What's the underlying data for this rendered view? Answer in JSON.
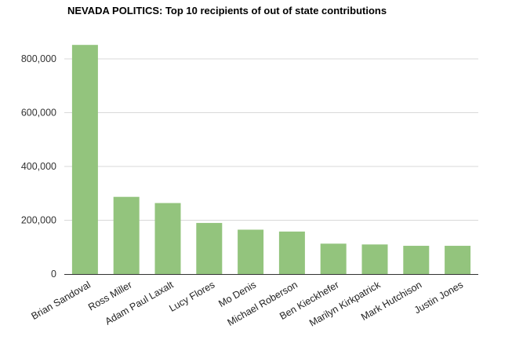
{
  "chart_data": {
    "type": "bar",
    "title": "NEVADA POLITICS: Top 10 recipients of out of state contributions",
    "xlabel": "",
    "ylabel": "",
    "categories": [
      "Brian Sandoval",
      "Ross Miller",
      "Adam Paul Laxalt",
      "Lucy Flores",
      "Mo Denis",
      "Michael Roberson",
      "Ben Kieckhefer",
      "Marilyn Kirkpatrick",
      "Mark Hutchison",
      "Justin Jones"
    ],
    "values": [
      852000,
      287000,
      264000,
      190000,
      165000,
      158000,
      113000,
      110000,
      105000,
      105000
    ],
    "ylim": [
      0,
      800000
    ],
    "yticks": [
      0,
      200000,
      400000,
      600000,
      800000
    ],
    "ytick_labels": [
      "0",
      "200,000",
      "400,000",
      "600,000",
      "800,000"
    ],
    "grid": true,
    "bar_color": "#93c47d",
    "grid_color": "#d9d9d9",
    "axis_color": "#333333"
  }
}
